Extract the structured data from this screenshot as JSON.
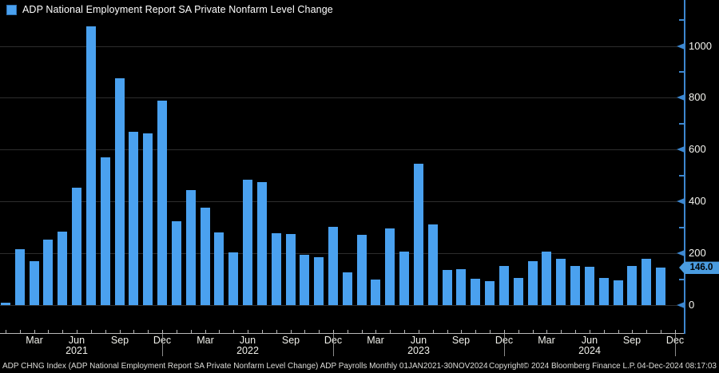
{
  "legend": {
    "marker_color": "#4aa1ef",
    "label": "ADP National Employment Report SA Private Nonfarm Level Change"
  },
  "chart_data": {
    "type": "bar",
    "title": "ADP National Employment Report SA Private Nonfarm Level Change",
    "xlabel": "",
    "ylabel": "",
    "ylim": [
      0,
      1100
    ],
    "grid": "horizontal",
    "bar_color": "#4aa1ef",
    "categories": [
      "Jan 2021",
      "Feb 2021",
      "Mar 2021",
      "Apr 2021",
      "May 2021",
      "Jun 2021",
      "Jul 2021",
      "Aug 2021",
      "Sep 2021",
      "Oct 2021",
      "Nov 2021",
      "Dec 2021",
      "Jan 2022",
      "Feb 2022",
      "Mar 2022",
      "Apr 2022",
      "May 2022",
      "Jun 2022",
      "Jul 2022",
      "Aug 2022",
      "Sep 2022",
      "Oct 2022",
      "Nov 2022",
      "Dec 2022",
      "Jan 2023",
      "Feb 2023",
      "Mar 2023",
      "Apr 2023",
      "May 2023",
      "Jun 2023",
      "Jul 2023",
      "Aug 2023",
      "Sep 2023",
      "Oct 2023",
      "Nov 2023",
      "Dec 2023",
      "Jan 2024",
      "Feb 2024",
      "Mar 2024",
      "Apr 2024",
      "May 2024",
      "Jun 2024",
      "Jul 2024",
      "Aug 2024",
      "Sep 2024",
      "Oct 2024",
      "Nov 2024"
    ],
    "values": [
      10,
      215,
      170,
      253,
      284,
      452,
      1077,
      571,
      875,
      668,
      662,
      790,
      325,
      445,
      376,
      280,
      202,
      485,
      475,
      277,
      273,
      193,
      186,
      301,
      127,
      270,
      100,
      295,
      205,
      545,
      310,
      135,
      140,
      103,
      93,
      152,
      106,
      168,
      205,
      180,
      152,
      149,
      106,
      96,
      152,
      180,
      146
    ],
    "last_value_label": "146.0",
    "y_axis": {
      "side": "right",
      "major_ticks": [
        0,
        200,
        400,
        600,
        800,
        1000
      ],
      "major_tick_labels": [
        "0",
        "200",
        "400",
        "600",
        "800",
        "1000"
      ],
      "minor_ticks": [
        100,
        300,
        500,
        700,
        900,
        1100
      ]
    },
    "x_axis": {
      "month_tick_labels": [
        {
          "i": 2,
          "label": "Mar"
        },
        {
          "i": 5,
          "label": "Jun"
        },
        {
          "i": 8,
          "label": "Sep"
        },
        {
          "i": 11,
          "label": "Dec"
        },
        {
          "i": 14,
          "label": "Mar"
        },
        {
          "i": 17,
          "label": "Jun"
        },
        {
          "i": 20,
          "label": "Sep"
        },
        {
          "i": 23,
          "label": "Dec"
        },
        {
          "i": 26,
          "label": "Mar"
        },
        {
          "i": 29,
          "label": "Jun"
        },
        {
          "i": 32,
          "label": "Sep"
        },
        {
          "i": 35,
          "label": "Dec"
        },
        {
          "i": 38,
          "label": "Mar"
        },
        {
          "i": 41,
          "label": "Jun"
        },
        {
          "i": 44,
          "label": "Sep"
        },
        {
          "i": 47,
          "label": "Dec"
        }
      ],
      "year_labels": [
        {
          "i": 5,
          "label": "2021"
        },
        {
          "i": 17,
          "label": "2022"
        },
        {
          "i": 29,
          "label": "2023"
        },
        {
          "i": 41,
          "label": "2024"
        }
      ],
      "year_separators": [
        11,
        23,
        35,
        47
      ]
    },
    "colors": {
      "background": "#000000",
      "bar": "#4aa1ef",
      "axis_blue": "#3d87cf",
      "gridline": "#2d2d2d",
      "badge_bg": "#4a9ce0",
      "text": "#f5f5f0"
    }
  },
  "footer": {
    "left": "ADP CHNG Index (ADP National Employment Report SA Private Nonfarm Level Change) ADP Payrolls  Monthly 01JAN2021-30NOV2024",
    "center": "Copyright© 2024 Bloomberg Finance L.P.",
    "right": "04-Dec-2024 08:17:03"
  }
}
